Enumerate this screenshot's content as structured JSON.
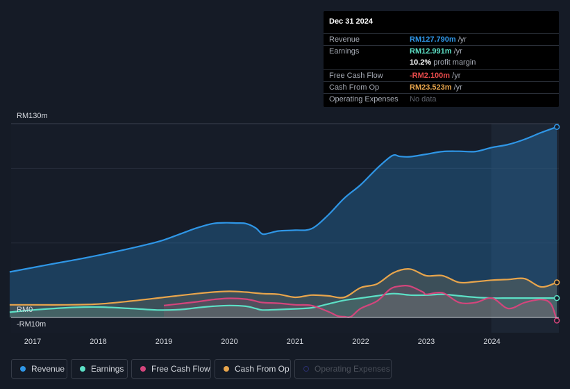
{
  "chart_data": {
    "type": "area",
    "title": "",
    "xlabel": "",
    "ylabel": "",
    "ylim": [
      -10,
      130
    ],
    "y_tick_labels": {
      "top": "RM130m",
      "zero": "RM0",
      "bottom": "-RM10m"
    },
    "x_tick_labels": [
      "2017",
      "2018",
      "2019",
      "2020",
      "2021",
      "2022",
      "2023",
      "2024"
    ],
    "x_ticks": [
      2017,
      2018,
      2019,
      2020,
      2021,
      2022,
      2023,
      2024
    ],
    "xlim": [
      2016.65,
      2024.99
    ],
    "forecast_start": 2023.99,
    "series": [
      {
        "name": "Revenue",
        "key": "revenue",
        "color": "#2f96e6",
        "x": [
          2016.65,
          2017.25,
          2017.75,
          2018.25,
          2018.75,
          2019.0,
          2019.25,
          2019.5,
          2019.75,
          2019.95,
          2020.1,
          2020.25,
          2020.4,
          2020.5,
          2020.6,
          2020.75,
          2021.0,
          2021.25,
          2021.5,
          2021.75,
          2022.0,
          2022.25,
          2022.48,
          2022.6,
          2022.75,
          2023.0,
          2023.25,
          2023.5,
          2023.75,
          2024.0,
          2024.25,
          2024.5,
          2024.75,
          2024.99
        ],
        "values": [
          30.5,
          35.5,
          39.5,
          44.0,
          49.0,
          52.0,
          56.0,
          60.0,
          63.0,
          63.5,
          63.3,
          63.0,
          60.0,
          56.0,
          56.5,
          58.0,
          58.5,
          59.5,
          68.5,
          80.0,
          89.0,
          100.0,
          108.5,
          108.0,
          107.8,
          109.5,
          111.3,
          111.5,
          111.3,
          114.0,
          116.0,
          119.5,
          124.0,
          127.79
        ]
      },
      {
        "name": "Earnings",
        "key": "earnings",
        "color": "#5ce0c6",
        "x": [
          2016.65,
          2017.0,
          2017.5,
          2018.0,
          2018.5,
          2018.9,
          2019.25,
          2019.5,
          2019.75,
          2020.0,
          2020.25,
          2020.4,
          2020.5,
          2020.75,
          2021.0,
          2021.25,
          2021.5,
          2021.75,
          2022.0,
          2022.25,
          2022.5,
          2022.75,
          2023.0,
          2023.25,
          2023.5,
          2023.75,
          2024.0,
          2024.25,
          2024.5,
          2024.75,
          2024.99
        ],
        "values": [
          3.5,
          5.0,
          6.5,
          7.0,
          6.0,
          5.0,
          5.3,
          6.5,
          7.5,
          8.0,
          7.5,
          6.0,
          5.0,
          5.3,
          5.8,
          6.5,
          9.0,
          11.5,
          13.0,
          14.5,
          16.0,
          15.0,
          15.0,
          15.5,
          14.5,
          13.5,
          13.0,
          13.0,
          13.0,
          13.0,
          12.991
        ]
      },
      {
        "name": "Free Cash Flow",
        "key": "fcf",
        "color": "#d4457c",
        "x": [
          2019.0,
          2019.5,
          2019.75,
          2020.0,
          2020.25,
          2020.4,
          2020.5,
          2020.75,
          2021.0,
          2021.25,
          2021.5,
          2021.65,
          2021.75,
          2021.85,
          2022.0,
          2022.25,
          2022.45,
          2022.6,
          2022.75,
          2022.95,
          2023.0,
          2023.25,
          2023.5,
          2023.75,
          2024.0,
          2024.25,
          2024.5,
          2024.75,
          2024.9,
          2024.99
        ],
        "values": [
          8.0,
          10.5,
          12.0,
          12.8,
          12.3,
          11.0,
          10.0,
          9.5,
          8.5,
          8.0,
          4.0,
          1.0,
          0.5,
          0.5,
          6.0,
          11.0,
          19.0,
          21.0,
          21.0,
          17.0,
          15.5,
          16.5,
          10.0,
          10.0,
          13.0,
          6.0,
          10.0,
          12.0,
          9.0,
          -2.1
        ]
      },
      {
        "name": "Cash From Op",
        "key": "cfo",
        "color": "#e8a54c",
        "x": [
          2016.65,
          2017.0,
          2017.5,
          2018.0,
          2018.5,
          2019.0,
          2019.5,
          2019.75,
          2020.0,
          2020.25,
          2020.5,
          2020.75,
          2021.0,
          2021.25,
          2021.5,
          2021.75,
          2022.0,
          2022.25,
          2022.5,
          2022.75,
          2023.0,
          2023.25,
          2023.5,
          2023.75,
          2024.0,
          2024.25,
          2024.5,
          2024.75,
          2024.99
        ],
        "values": [
          8.5,
          8.5,
          8.5,
          9.0,
          11.0,
          13.5,
          16.0,
          17.0,
          17.5,
          17.0,
          16.0,
          15.5,
          13.5,
          15.0,
          14.5,
          13.5,
          20.0,
          22.5,
          30.0,
          32.5,
          28.0,
          28.0,
          23.5,
          24.0,
          25.0,
          25.5,
          26.0,
          20.5,
          23.523
        ]
      },
      {
        "name": "Operating Expenses",
        "key": "opex",
        "color": "#2a2f6e",
        "x": [],
        "values": []
      }
    ],
    "tooltip": {
      "date": "Dec 31 2024",
      "rows": [
        {
          "label": "Revenue",
          "value": "RM127.790m",
          "unit": "/yr",
          "color": "#2f96e6"
        },
        {
          "label": "Earnings",
          "value": "RM12.991m",
          "unit": "/yr",
          "color": "#5ce0c6"
        },
        {
          "label": "",
          "value": "10.2%",
          "unit": "profit margin",
          "color": "#ffffff"
        },
        {
          "label": "Free Cash Flow",
          "value": "-RM2.100m",
          "unit": "/yr",
          "color": "#e84b4b"
        },
        {
          "label": "Cash From Op",
          "value": "RM23.523m",
          "unit": "/yr",
          "color": "#e8a54c"
        },
        {
          "label": "Operating Expenses",
          "value": "No data",
          "unit": "",
          "color": "#5f646e"
        }
      ]
    },
    "legend": [
      "Revenue",
      "Earnings",
      "Free Cash Flow",
      "Cash From Op",
      "Operating Expenses"
    ]
  }
}
